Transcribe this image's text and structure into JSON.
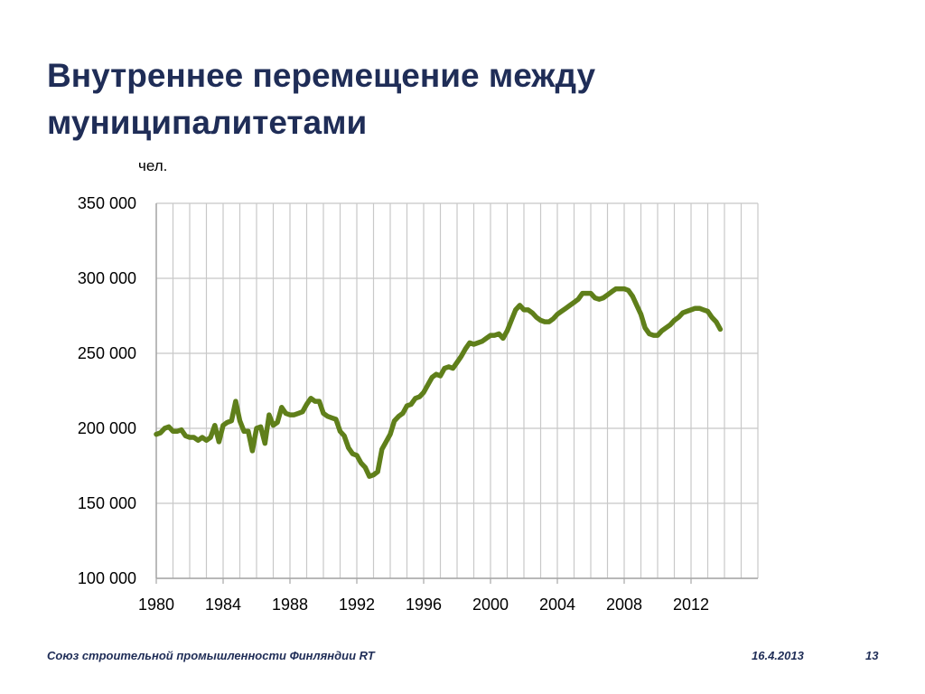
{
  "slide": {
    "title_lines": [
      "Внутреннее перемещение между",
      "муниципалитетами"
    ],
    "unit_label": "чел."
  },
  "footer": {
    "organization": "Союз строительной промышленности Финляндии RT",
    "date": "16.4.2013",
    "page": "13"
  },
  "colors": {
    "title": "#1f2d57",
    "series": "#5f7f1a",
    "grid": "#c8c8c8"
  },
  "chart_data": {
    "type": "line",
    "xlim": [
      1980,
      2016
    ],
    "ylim": [
      100000,
      350000
    ],
    "x_ticks": [
      1980,
      1984,
      1988,
      1992,
      1996,
      2000,
      2004,
      2008,
      2012
    ],
    "x_tick_labels": [
      "1980",
      "1984",
      "1988",
      "1992",
      "1996",
      "2000",
      "2004",
      "2008",
      "2012"
    ],
    "y_ticks": [
      100000,
      150000,
      200000,
      250000,
      300000,
      350000
    ],
    "y_tick_labels": [
      "100 000",
      "150 000",
      "200 000",
      "250 000",
      "300 000",
      "350 000"
    ],
    "grid": true,
    "legend": "none",
    "series": [
      {
        "x": [
          1980.0,
          1980.25,
          1980.5,
          1980.75,
          1981.0,
          1981.25,
          1981.5,
          1981.75,
          1982.0,
          1982.25,
          1982.5,
          1982.75,
          1983.0,
          1983.25,
          1983.5,
          1983.75,
          1984.0,
          1984.25,
          1984.5,
          1984.75,
          1985.0,
          1985.25,
          1985.5,
          1985.75,
          1986.0,
          1986.25,
          1986.5,
          1986.75,
          1987.0,
          1987.25,
          1987.5,
          1987.75,
          1988.0,
          1988.25,
          1988.5,
          1988.75,
          1989.0,
          1989.25,
          1989.5,
          1989.75,
          1990.0,
          1990.25,
          1990.5,
          1990.75,
          1991.0,
          1991.25,
          1991.5,
          1991.75,
          1992.0,
          1992.25,
          1992.5,
          1992.75,
          1993.0,
          1993.25,
          1993.5,
          1993.75,
          1994.0,
          1994.25,
          1994.5,
          1994.75,
          1995.0,
          1995.25,
          1995.5,
          1995.75,
          1996.0,
          1996.25,
          1996.5,
          1996.75,
          1997.0,
          1997.25,
          1997.5,
          1997.75,
          1998.0,
          1998.25,
          1998.5,
          1998.75,
          1999.0,
          1999.25,
          1999.5,
          1999.75,
          2000.0,
          2000.25,
          2000.5,
          2000.75,
          2001.0,
          2001.25,
          2001.5,
          2001.75,
          2002.0,
          2002.25,
          2002.5,
          2002.75,
          2003.0,
          2003.25,
          2003.5,
          2003.75,
          2004.0,
          2004.25,
          2004.5,
          2004.75,
          2005.0,
          2005.25,
          2005.5,
          2005.75,
          2006.0,
          2006.25,
          2006.5,
          2006.75,
          2007.0,
          2007.25,
          2007.5,
          2007.75,
          2008.0,
          2008.25,
          2008.5,
          2008.75,
          2009.0,
          2009.25,
          2009.5,
          2009.75,
          2010.0,
          2010.25,
          2010.5,
          2010.75,
          2011.0,
          2011.25,
          2011.5,
          2011.75,
          2012.0,
          2012.25,
          2012.5,
          2012.75,
          2013.0,
          2013.25,
          2013.5,
          2013.75
        ],
        "values": [
          196000,
          197000,
          200000,
          201000,
          198000,
          198000,
          199000,
          195000,
          194000,
          194000,
          192000,
          194000,
          192000,
          194000,
          202000,
          191000,
          202000,
          204000,
          205000,
          218000,
          205000,
          198000,
          198000,
          185000,
          200000,
          201000,
          190000,
          209000,
          202000,
          204000,
          214000,
          210000,
          209000,
          209000,
          210000,
          211000,
          216000,
          220000,
          218000,
          218000,
          210000,
          208000,
          207000,
          206000,
          198000,
          195000,
          187000,
          183000,
          182000,
          177000,
          174000,
          168000,
          169000,
          171000,
          186000,
          191000,
          196000,
          205000,
          208000,
          210000,
          215000,
          216000,
          220000,
          221000,
          224000,
          229000,
          234000,
          236000,
          235000,
          240000,
          241000,
          240000,
          244000,
          248000,
          253000,
          257000,
          256000,
          257000,
          258000,
          260000,
          262000,
          262000,
          263000,
          260000,
          265000,
          272000,
          279000,
          282000,
          279000,
          279000,
          277000,
          274000,
          272000,
          271000,
          271000,
          273000,
          276000,
          278000,
          280000,
          282000,
          284000,
          286000,
          290000,
          290000,
          290000,
          287000,
          286000,
          287000,
          289000,
          291000,
          293000,
          293000,
          293000,
          292000,
          288000,
          282000,
          276000,
          267000,
          263000,
          262000,
          262000,
          265000,
          267000,
          269000,
          272000,
          274000,
          277000,
          278000,
          279000,
          280000,
          280000,
          279000,
          278000,
          274000,
          271000,
          266000
        ]
      }
    ]
  }
}
